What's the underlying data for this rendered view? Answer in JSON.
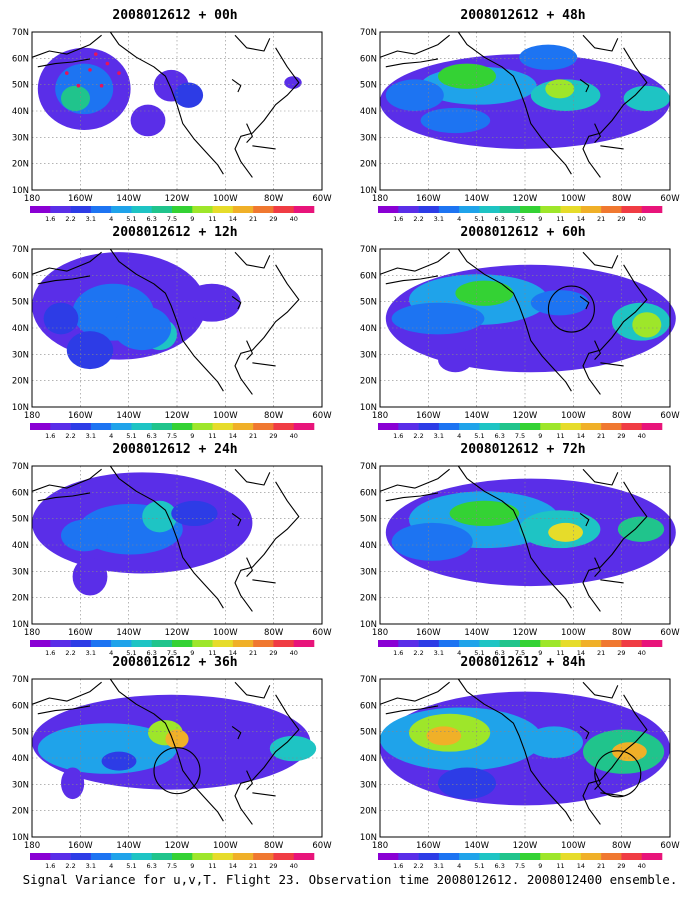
{
  "footer_caption": "Signal Variance for u,v,T. Flight 23. Observation time 2008012612. 2008012400 ensemble.",
  "lat_labels": [
    "70N",
    "60N",
    "50N",
    "40N",
    "30N",
    "20N",
    "10N"
  ],
  "lon_labels": [
    "180",
    "160W",
    "140W",
    "120W",
    "100W",
    "80W",
    "60W"
  ],
  "legend_labels": [
    "1.6",
    "2.2",
    "3.1",
    "4",
    "5.1",
    "6.3",
    "7.5",
    "9",
    "11",
    "14",
    "21",
    "29",
    "40"
  ],
  "legend_colors": [
    "#8a00d4",
    "#5a2ee8",
    "#2d3ce6",
    "#1d74f2",
    "#1fa3ea",
    "#1ec4c4",
    "#20c48c",
    "#34d234",
    "#9ee62a",
    "#e6dc2a",
    "#f0b028",
    "#f07830",
    "#f03c44",
    "#e8147a"
  ],
  "panels": [
    {
      "id": "00h",
      "title": "2008012612 + 00h",
      "circle": false,
      "dots": true
    },
    {
      "id": "48h",
      "title": "2008012612 + 48h",
      "circle": false,
      "dots": false
    },
    {
      "id": "12h",
      "title": "2008012612 + 12h",
      "circle": false,
      "dots": false
    },
    {
      "id": "60h",
      "title": "2008012612 + 60h",
      "circle": true,
      "dots": false
    },
    {
      "id": "24h",
      "title": "2008012612 + 24h",
      "circle": false,
      "dots": false
    },
    {
      "id": "72h",
      "title": "2008012612 + 72h",
      "circle": false,
      "dots": false
    },
    {
      "id": "36h",
      "title": "2008012612 + 36h",
      "circle": true,
      "dots": false
    },
    {
      "id": "84h",
      "title": "2008012612 + 84h",
      "circle": true,
      "dots": false
    }
  ]
}
